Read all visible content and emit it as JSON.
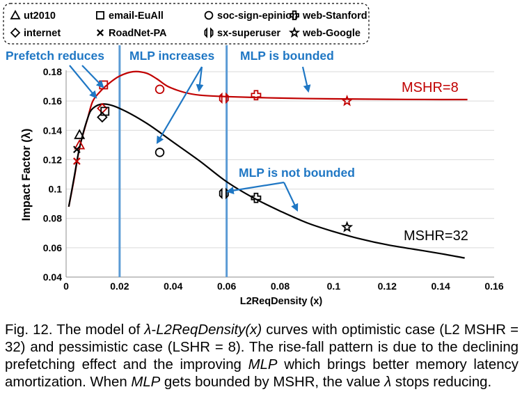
{
  "chart_data": {
    "type": "scatter",
    "xlabel": "L2ReqDensity (x)",
    "ylabel": "Impact Factor (λ)",
    "xlim": [
      0,
      0.16
    ],
    "ylim": [
      0.04,
      0.18
    ],
    "xticks": [
      "0",
      "0.02",
      "0.04",
      "0.06",
      "0.08",
      "0.1",
      "0.12",
      "0.14",
      "0.16"
    ],
    "yticks": [
      "0.04",
      "0.06",
      "0.08",
      "0.1",
      "0.12",
      "0.14",
      "0.16",
      "0.18"
    ],
    "grid": "horizontal",
    "legend": {
      "placement": "top",
      "entries": [
        {
          "name": "ut2010",
          "marker": "triangle"
        },
        {
          "name": "email-EuAll",
          "marker": "square"
        },
        {
          "name": "soc-sign-epinion",
          "marker": "circle"
        },
        {
          "name": "web-Stanford",
          "marker": "cross"
        },
        {
          "name": "internet",
          "marker": "diamond"
        },
        {
          "name": "RoadNet-PA",
          "marker": "x"
        },
        {
          "name": "sx-superuser",
          "marker": "x-cross"
        },
        {
          "name": "web-Google",
          "marker": "star"
        }
      ]
    },
    "series": [
      {
        "name": "MSHR=8",
        "color": "#c00000",
        "curve": [
          [
            0.001,
            0.088
          ],
          [
            0.003,
            0.107
          ],
          [
            0.005,
            0.128
          ],
          [
            0.008,
            0.148
          ],
          [
            0.01,
            0.16
          ],
          [
            0.013,
            0.167
          ],
          [
            0.016,
            0.172
          ],
          [
            0.02,
            0.177
          ],
          [
            0.025,
            0.18
          ],
          [
            0.03,
            0.179
          ],
          [
            0.034,
            0.175
          ],
          [
            0.038,
            0.17
          ],
          [
            0.044,
            0.166
          ],
          [
            0.05,
            0.164
          ],
          [
            0.06,
            0.163
          ],
          [
            0.08,
            0.162
          ],
          [
            0.1,
            0.1615
          ],
          [
            0.12,
            0.1612
          ],
          [
            0.14,
            0.161
          ],
          [
            0.15,
            0.161
          ]
        ],
        "points": [
          {
            "dataset": "ut2010",
            "x": 0.005,
            "y": 0.13
          },
          {
            "dataset": "email-EuAll",
            "x": 0.014,
            "y": 0.171
          },
          {
            "dataset": "soc-sign-epinion",
            "x": 0.035,
            "y": 0.168
          },
          {
            "dataset": "web-Stanford",
            "x": 0.071,
            "y": 0.164
          },
          {
            "dataset": "internet",
            "x": 0.0135,
            "y": 0.155
          },
          {
            "dataset": "RoadNet-PA",
            "x": 0.004,
            "y": 0.119
          },
          {
            "dataset": "sx-superuser",
            "x": 0.059,
            "y": 0.162
          },
          {
            "dataset": "web-Google",
            "x": 0.105,
            "y": 0.16
          }
        ]
      },
      {
        "name": "MSHR=32",
        "color": "#000000",
        "curve": [
          [
            0.001,
            0.088
          ],
          [
            0.003,
            0.108
          ],
          [
            0.005,
            0.128
          ],
          [
            0.008,
            0.148
          ],
          [
            0.01,
            0.155
          ],
          [
            0.014,
            0.158
          ],
          [
            0.02,
            0.155
          ],
          [
            0.03,
            0.145
          ],
          [
            0.04,
            0.132
          ],
          [
            0.05,
            0.119
          ],
          [
            0.06,
            0.105
          ],
          [
            0.07,
            0.094
          ],
          [
            0.08,
            0.085
          ],
          [
            0.09,
            0.077
          ],
          [
            0.1,
            0.071
          ],
          [
            0.11,
            0.066
          ],
          [
            0.12,
            0.062
          ],
          [
            0.13,
            0.059
          ],
          [
            0.14,
            0.056
          ],
          [
            0.149,
            0.053
          ]
        ],
        "points": [
          {
            "dataset": "ut2010",
            "x": 0.005,
            "y": 0.137
          },
          {
            "dataset": "email-EuAll",
            "x": 0.0145,
            "y": 0.153
          },
          {
            "dataset": "soc-sign-epinion",
            "x": 0.035,
            "y": 0.125
          },
          {
            "dataset": "web-Stanford",
            "x": 0.071,
            "y": 0.094
          },
          {
            "dataset": "internet",
            "x": 0.0135,
            "y": 0.149
          },
          {
            "dataset": "RoadNet-PA",
            "x": 0.004,
            "y": 0.127
          },
          {
            "dataset": "sx-superuser",
            "x": 0.059,
            "y": 0.097
          },
          {
            "dataset": "web-Google",
            "x": 0.105,
            "y": 0.074
          }
        ]
      }
    ],
    "vlines": [
      0.02,
      0.06
    ],
    "series_labels": [
      "MSHR=8",
      "MSHR=32"
    ],
    "annotations": [
      {
        "text": "Prefetch reduces",
        "color": "#1f77c4"
      },
      {
        "text": "MLP increases",
        "color": "#1f77c4"
      },
      {
        "text": "MLP is bounded",
        "color": "#1f77c4"
      },
      {
        "text": "MLP is not bounded",
        "color": "#1f77c4"
      }
    ]
  },
  "caption": {
    "prefix": "Fig. 12. The model of ",
    "lambda": "λ",
    "dash": "-",
    "func": "L2ReqDensity(x)",
    "mid1": " curves with optimistic case (L2 MSHR = 32) and pessimistic case (LSHR = 8). The rise-fall pattern is due to the declining prefetching effect and the improving ",
    "mlp1": "MLP",
    "mid2": " which brings better memory latency amortization. When ",
    "mlp2": "MLP",
    "mid3": " gets bounded by MSHR, the value ",
    "lambda2": "λ",
    "end": " stops reducing."
  },
  "colors": {
    "red": "#c00000",
    "black": "#000000",
    "blue": "#1f77c4",
    "grid": "#d9d9d9"
  }
}
